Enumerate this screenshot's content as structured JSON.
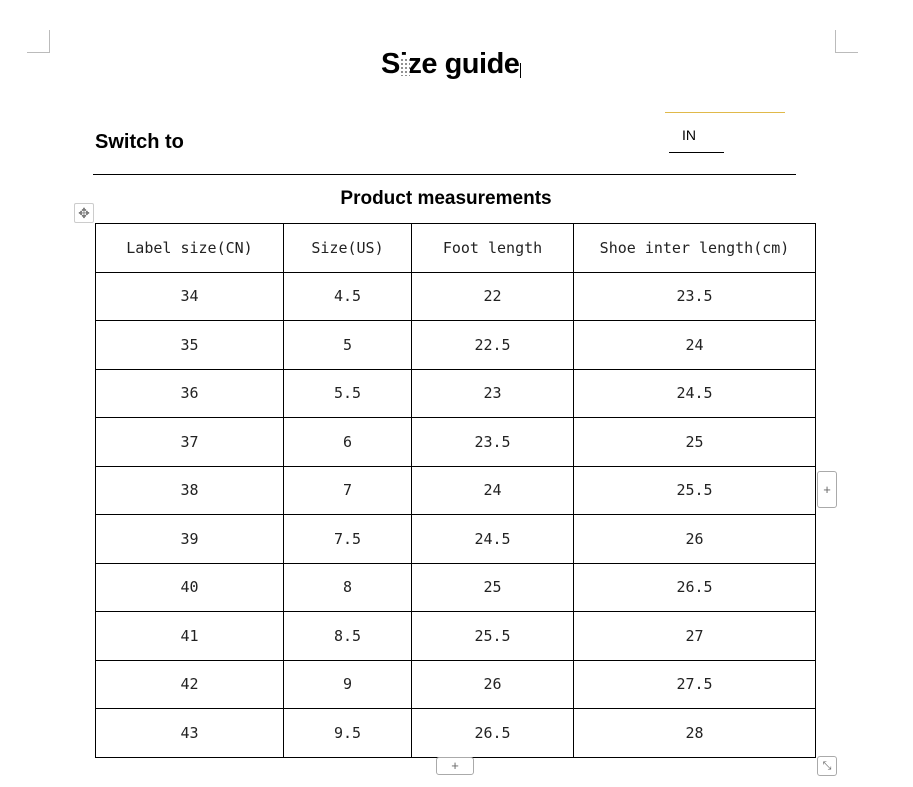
{
  "title": "Size guide",
  "switch_label": "Switch to",
  "unit": "IN",
  "section_title": "Product measurements",
  "table": {
    "headers": [
      "Label  size(CN)",
      "Size(US)",
      "Foot length",
      "Shoe inter length(cm)"
    ],
    "rows": [
      [
        "34",
        "4.5",
        "22",
        "23.5"
      ],
      [
        "35",
        "5",
        "22.5",
        "24"
      ],
      [
        "36",
        "5.5",
        "23",
        "24.5"
      ],
      [
        "37",
        "6",
        "23.5",
        "25"
      ],
      [
        "38",
        "7",
        "24",
        "25.5"
      ],
      [
        "39",
        "7.5",
        "24.5",
        "26"
      ],
      [
        "40",
        "8",
        "25",
        "26.5"
      ],
      [
        "41",
        "8.5",
        "25.5",
        "27"
      ],
      [
        "42",
        "9",
        "26",
        "27.5"
      ],
      [
        "43",
        "9.5",
        "26.5",
        "28"
      ]
    ]
  },
  "icons": {
    "move": "move-icon",
    "add_column": "plus-icon",
    "add_row": "plus-icon",
    "resize": "resize-icon"
  }
}
